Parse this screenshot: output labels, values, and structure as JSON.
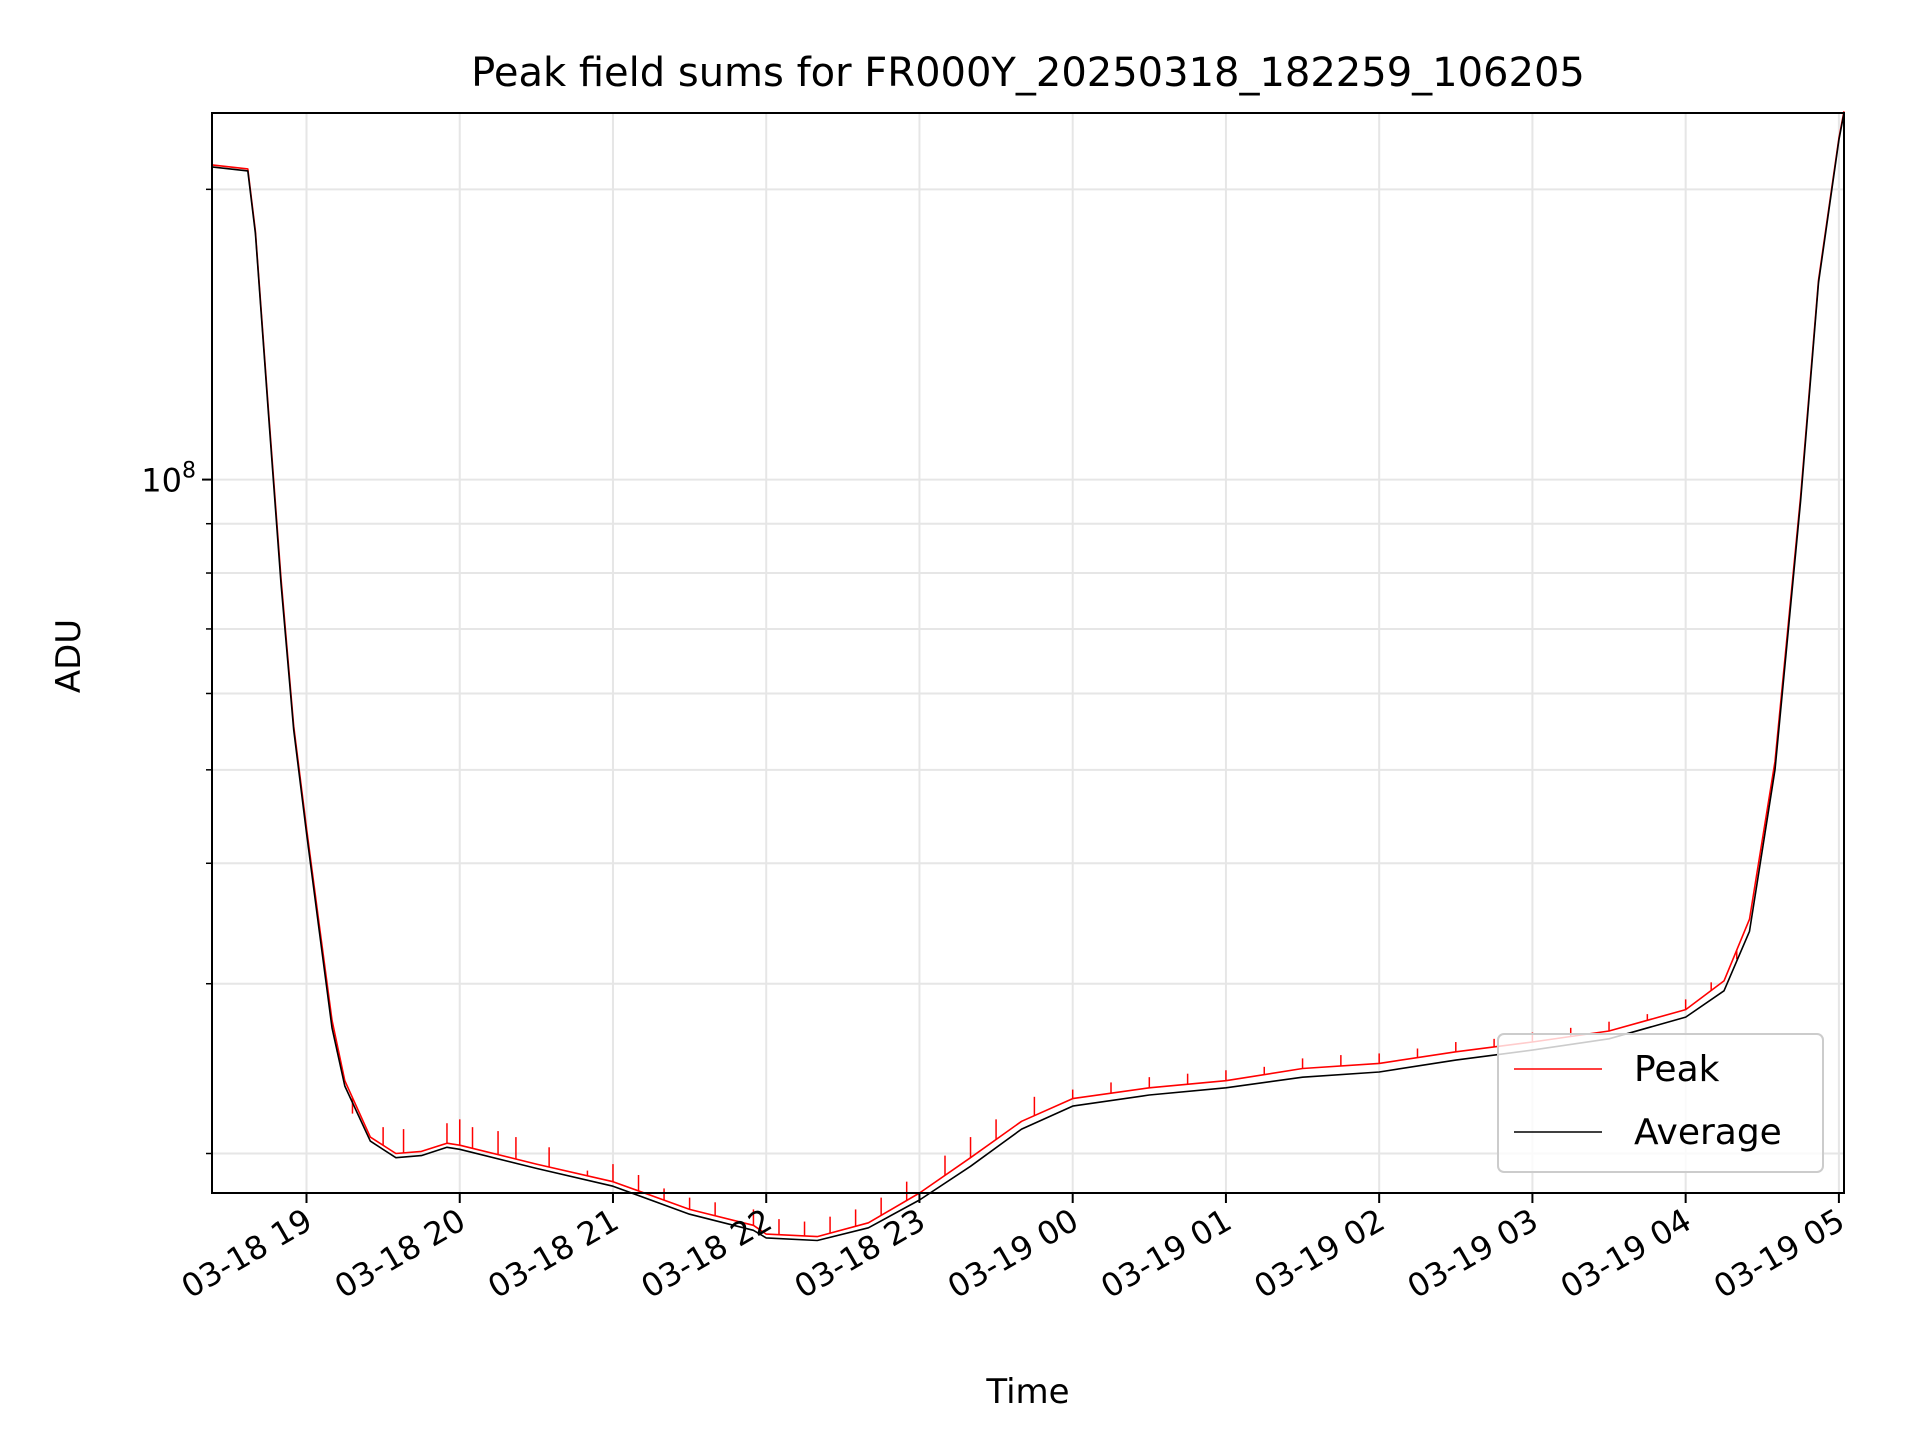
{
  "chart_data": {
    "type": "line",
    "title": "Peak field sums for FR000Y_20250318_182259_106205",
    "xlabel": "Time",
    "ylabel": "ADU",
    "yscale": "log",
    "grid": true,
    "legend_position": "lower-right",
    "xlim": [
      "2025-03-18 18:23",
      "2025-03-19 05:02"
    ],
    "ylim": [
      18200000,
      240000000
    ],
    "x_ticks": [
      {
        "t": "2025-03-18 19:00",
        "label": "03-18 19"
      },
      {
        "t": "2025-03-18 20:00",
        "label": "03-18 20"
      },
      {
        "t": "2025-03-18 21:00",
        "label": "03-18 21"
      },
      {
        "t": "2025-03-18 22:00",
        "label": "03-18 22"
      },
      {
        "t": "2025-03-18 23:00",
        "label": "03-18 23"
      },
      {
        "t": "2025-03-19 00:00",
        "label": "03-19 00"
      },
      {
        "t": "2025-03-19 01:00",
        "label": "03-19 01"
      },
      {
        "t": "2025-03-19 02:00",
        "label": "03-19 02"
      },
      {
        "t": "2025-03-19 03:00",
        "label": "03-19 03"
      },
      {
        "t": "2025-03-19 04:00",
        "label": "03-19 04"
      },
      {
        "t": "2025-03-19 05:00",
        "label": "03-19 05"
      }
    ],
    "y_major_ticks": [
      {
        "value": 100000000,
        "label_base": "10",
        "label_exp": "8"
      }
    ],
    "y_minor_ticks": [
      20000000,
      30000000,
      40000000,
      50000000,
      60000000,
      70000000,
      80000000,
      90000000,
      200000000
    ],
    "colors": {
      "peak": "#ff0000",
      "average": "#000000",
      "grid": "#e6e6e6"
    },
    "series": [
      {
        "name": "Average",
        "key": "average",
        "points": [
          [
            "2025-03-18 18:23",
            211000000
          ],
          [
            "2025-03-18 18:37",
            209000000
          ],
          [
            "2025-03-18 18:40",
            180000000
          ],
          [
            "2025-03-18 18:45",
            118000000
          ],
          [
            "2025-03-18 18:50",
            78000000
          ],
          [
            "2025-03-18 18:55",
            55000000
          ],
          [
            "2025-03-18 19:00",
            43000000
          ],
          [
            "2025-03-18 19:05",
            34000000
          ],
          [
            "2025-03-18 19:10",
            27000000
          ],
          [
            "2025-03-18 19:15",
            23500000
          ],
          [
            "2025-03-18 19:25",
            20600000
          ],
          [
            "2025-03-18 19:35",
            19800000
          ],
          [
            "2025-03-18 19:45",
            19900000
          ],
          [
            "2025-03-18 19:55",
            20300000
          ],
          [
            "2025-03-18 20:00",
            20200000
          ],
          [
            "2025-03-18 20:30",
            19300000
          ],
          [
            "2025-03-18 21:00",
            18500000
          ],
          [
            "2025-03-18 21:30",
            17300000
          ],
          [
            "2025-03-18 21:55",
            16650000
          ],
          [
            "2025-03-18 22:00",
            16350000
          ],
          [
            "2025-03-18 22:20",
            16250000
          ],
          [
            "2025-03-18 22:40",
            16750000
          ],
          [
            "2025-03-18 23:00",
            17900000
          ],
          [
            "2025-03-18 23:20",
            19400000
          ],
          [
            "2025-03-18 23:40",
            21200000
          ],
          [
            "2025-03-19 00:00",
            22400000
          ],
          [
            "2025-03-19 00:30",
            23000000
          ],
          [
            "2025-03-19 01:00",
            23400000
          ],
          [
            "2025-03-19 01:30",
            24000000
          ],
          [
            "2025-03-19 02:00",
            24300000
          ],
          [
            "2025-03-19 02:30",
            25000000
          ],
          [
            "2025-03-19 03:00",
            25600000
          ],
          [
            "2025-03-19 03:30",
            26300000
          ],
          [
            "2025-03-19 04:00",
            27700000
          ],
          [
            "2025-03-19 04:15",
            29500000
          ],
          [
            "2025-03-19 04:25",
            34000000
          ],
          [
            "2025-03-19 04:35",
            50000000
          ],
          [
            "2025-03-19 04:45",
            95000000
          ],
          [
            "2025-03-19 04:52",
            160000000
          ],
          [
            "2025-03-19 05:00",
            225000000
          ],
          [
            "2025-03-19 05:02",
            240000000
          ]
        ]
      },
      {
        "name": "Peak",
        "key": "peak",
        "points": [
          [
            "2025-03-18 18:23",
            212000000
          ],
          [
            "2025-03-18 18:37",
            210000000
          ],
          [
            "2025-03-18 18:40",
            181000000
          ],
          [
            "2025-03-18 18:45",
            119000000
          ],
          [
            "2025-03-18 18:50",
            79000000
          ],
          [
            "2025-03-18 18:55",
            55500000
          ],
          [
            "2025-03-18 19:00",
            43500000
          ],
          [
            "2025-03-18 19:05",
            34500000
          ],
          [
            "2025-03-18 19:10",
            27500000
          ],
          [
            "2025-03-18 19:15",
            23800000
          ],
          [
            "2025-03-18 19:25",
            20800000
          ],
          [
            "2025-03-18 19:35",
            20000000
          ],
          [
            "2025-03-18 19:45",
            20100000
          ],
          [
            "2025-03-18 19:55",
            20500000
          ],
          [
            "2025-03-18 20:00",
            20400000
          ],
          [
            "2025-03-18 20:30",
            19500000
          ],
          [
            "2025-03-18 21:00",
            18700000
          ],
          [
            "2025-03-18 21:30",
            17500000
          ],
          [
            "2025-03-18 21:55",
            16850000
          ],
          [
            "2025-03-18 22:00",
            16500000
          ],
          [
            "2025-03-18 22:20",
            16400000
          ],
          [
            "2025-03-18 22:40",
            16950000
          ],
          [
            "2025-03-18 23:00",
            18200000
          ],
          [
            "2025-03-18 23:20",
            19800000
          ],
          [
            "2025-03-18 23:40",
            21600000
          ],
          [
            "2025-03-19 00:00",
            22800000
          ],
          [
            "2025-03-19 00:30",
            23400000
          ],
          [
            "2025-03-19 01:00",
            23800000
          ],
          [
            "2025-03-19 01:30",
            24500000
          ],
          [
            "2025-03-19 02:00",
            24800000
          ],
          [
            "2025-03-19 02:30",
            25500000
          ],
          [
            "2025-03-19 03:00",
            26100000
          ],
          [
            "2025-03-19 03:30",
            26800000
          ],
          [
            "2025-03-19 04:00",
            28200000
          ],
          [
            "2025-03-19 04:15",
            30200000
          ],
          [
            "2025-03-19 04:25",
            35000000
          ],
          [
            "2025-03-19 04:35",
            51000000
          ],
          [
            "2025-03-19 04:45",
            96000000
          ],
          [
            "2025-03-19 04:52",
            161000000
          ],
          [
            "2025-03-19 05:00",
            226000000
          ],
          [
            "2025-03-19 05:02",
            241000000
          ]
        ],
        "spikes": [
          [
            "2025-03-18 19:12",
            25500000
          ],
          [
            "2025-03-18 19:18",
            22000000
          ],
          [
            "2025-03-18 19:30",
            21300000
          ],
          [
            "2025-03-18 19:38",
            21200000
          ],
          [
            "2025-03-18 19:55",
            21500000
          ],
          [
            "2025-03-18 20:00",
            21700000
          ],
          [
            "2025-03-18 20:05",
            21300000
          ],
          [
            "2025-03-18 20:15",
            21100000
          ],
          [
            "2025-03-18 20:22",
            20800000
          ],
          [
            "2025-03-18 20:35",
            20300000
          ],
          [
            "2025-03-18 20:50",
            19200000
          ],
          [
            "2025-03-18 21:00",
            19500000
          ],
          [
            "2025-03-18 21:10",
            19000000
          ],
          [
            "2025-03-18 21:20",
            18400000
          ],
          [
            "2025-03-18 21:30",
            18000000
          ],
          [
            "2025-03-18 21:40",
            17800000
          ],
          [
            "2025-03-18 21:55",
            17500000
          ],
          [
            "2025-03-18 22:05",
            17100000
          ],
          [
            "2025-03-18 22:15",
            17000000
          ],
          [
            "2025-03-18 22:25",
            17200000
          ],
          [
            "2025-03-18 22:35",
            17500000
          ],
          [
            "2025-03-18 22:45",
            18000000
          ],
          [
            "2025-03-18 22:55",
            18700000
          ],
          [
            "2025-03-18 23:10",
            19900000
          ],
          [
            "2025-03-18 23:20",
            20800000
          ],
          [
            "2025-03-18 23:30",
            21700000
          ],
          [
            "2025-03-18 23:45",
            22900000
          ],
          [
            "2025-03-19 00:00",
            23300000
          ],
          [
            "2025-03-19 00:15",
            23700000
          ],
          [
            "2025-03-19 00:30",
            24000000
          ],
          [
            "2025-03-19 00:45",
            24200000
          ],
          [
            "2025-03-19 01:00",
            24400000
          ],
          [
            "2025-03-19 01:15",
            24600000
          ],
          [
            "2025-03-19 01:30",
            25100000
          ],
          [
            "2025-03-19 01:45",
            25300000
          ],
          [
            "2025-03-19 02:00",
            25400000
          ],
          [
            "2025-03-19 02:15",
            25700000
          ],
          [
            "2025-03-19 02:30",
            26100000
          ],
          [
            "2025-03-19 02:45",
            26300000
          ],
          [
            "2025-03-19 03:00",
            26700000
          ],
          [
            "2025-03-19 03:15",
            27000000
          ],
          [
            "2025-03-19 03:30",
            27400000
          ],
          [
            "2025-03-19 03:45",
            27900000
          ],
          [
            "2025-03-19 04:00",
            28900000
          ],
          [
            "2025-03-19 04:10",
            30100000
          ],
          [
            "2025-03-19 04:20",
            31800000
          ]
        ]
      }
    ]
  }
}
